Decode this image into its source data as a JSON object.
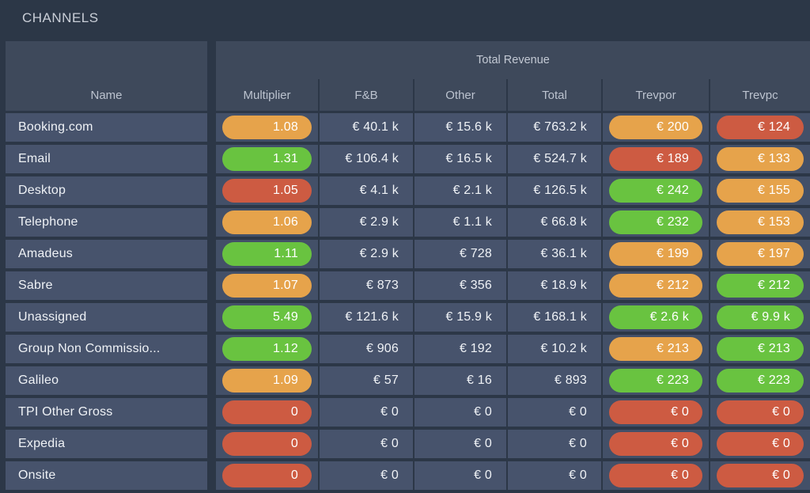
{
  "title": "CHANNELS",
  "table": {
    "group_header": "Total Revenue",
    "name_column_header": "Name",
    "columns": [
      "Multiplier",
      "F&B",
      "Other",
      "Total",
      "Trevpor",
      "Trevpc"
    ],
    "colors": {
      "orange": "#e6a34b",
      "green": "#69c340",
      "red": "#cd5b42",
      "panel_header_bg": "#3e495b",
      "cell_bg": "#47536c",
      "pill_cell_bg": "#435068",
      "page_bg": "#2c3747"
    },
    "rows": [
      {
        "name": "Booking.com",
        "multiplier": {
          "value": "1.08",
          "color": "orange"
        },
        "fb": "€ 40.1 k",
        "other": "€ 15.6 k",
        "total": "€ 763.2 k",
        "trevpor": {
          "value": "€ 200",
          "color": "orange"
        },
        "trevpc": {
          "value": "€ 124",
          "color": "red"
        }
      },
      {
        "name": "Email",
        "multiplier": {
          "value": "1.31",
          "color": "green"
        },
        "fb": "€ 106.4 k",
        "other": "€ 16.5 k",
        "total": "€ 524.7 k",
        "trevpor": {
          "value": "€ 189",
          "color": "red"
        },
        "trevpc": {
          "value": "€ 133",
          "color": "orange"
        }
      },
      {
        "name": "Desktop",
        "multiplier": {
          "value": "1.05",
          "color": "red"
        },
        "fb": "€ 4.1 k",
        "other": "€ 2.1 k",
        "total": "€ 126.5 k",
        "trevpor": {
          "value": "€ 242",
          "color": "green"
        },
        "trevpc": {
          "value": "€ 155",
          "color": "orange"
        }
      },
      {
        "name": "Telephone",
        "multiplier": {
          "value": "1.06",
          "color": "orange"
        },
        "fb": "€ 2.9 k",
        "other": "€ 1.1 k",
        "total": "€ 66.8 k",
        "trevpor": {
          "value": "€ 232",
          "color": "green"
        },
        "trevpc": {
          "value": "€ 153",
          "color": "orange"
        }
      },
      {
        "name": "Amadeus",
        "multiplier": {
          "value": "1.11",
          "color": "green"
        },
        "fb": "€ 2.9 k",
        "other": "€ 728",
        "total": "€ 36.1 k",
        "trevpor": {
          "value": "€ 199",
          "color": "orange"
        },
        "trevpc": {
          "value": "€ 197",
          "color": "orange"
        }
      },
      {
        "name": "Sabre",
        "multiplier": {
          "value": "1.07",
          "color": "orange"
        },
        "fb": "€ 873",
        "other": "€ 356",
        "total": "€ 18.9 k",
        "trevpor": {
          "value": "€ 212",
          "color": "orange"
        },
        "trevpc": {
          "value": "€ 212",
          "color": "green"
        }
      },
      {
        "name": "Unassigned",
        "multiplier": {
          "value": "5.49",
          "color": "green"
        },
        "fb": "€ 121.6 k",
        "other": "€ 15.9 k",
        "total": "€ 168.1 k",
        "trevpor": {
          "value": "€ 2.6 k",
          "color": "green"
        },
        "trevpc": {
          "value": "€ 9.9 k",
          "color": "green"
        }
      },
      {
        "name": "Group Non Commissio...",
        "multiplier": {
          "value": "1.12",
          "color": "green"
        },
        "fb": "€ 906",
        "other": "€ 192",
        "total": "€ 10.2 k",
        "trevpor": {
          "value": "€ 213",
          "color": "orange"
        },
        "trevpc": {
          "value": "€ 213",
          "color": "green"
        }
      },
      {
        "name": "Galileo",
        "multiplier": {
          "value": "1.09",
          "color": "orange"
        },
        "fb": "€ 57",
        "other": "€ 16",
        "total": "€ 893",
        "trevpor": {
          "value": "€ 223",
          "color": "green"
        },
        "trevpc": {
          "value": "€ 223",
          "color": "green"
        }
      },
      {
        "name": "TPI Other Gross",
        "multiplier": {
          "value": "0",
          "color": "red"
        },
        "fb": "€ 0",
        "other": "€ 0",
        "total": "€ 0",
        "trevpor": {
          "value": "€ 0",
          "color": "red"
        },
        "trevpc": {
          "value": "€ 0",
          "color": "red"
        }
      },
      {
        "name": "Expedia",
        "multiplier": {
          "value": "0",
          "color": "red"
        },
        "fb": "€ 0",
        "other": "€ 0",
        "total": "€ 0",
        "trevpor": {
          "value": "€ 0",
          "color": "red"
        },
        "trevpc": {
          "value": "€ 0",
          "color": "red"
        }
      },
      {
        "name": "Onsite",
        "multiplier": {
          "value": "0",
          "color": "red"
        },
        "fb": "€ 0",
        "other": "€ 0",
        "total": "€ 0",
        "trevpor": {
          "value": "€ 0",
          "color": "red"
        },
        "trevpc": {
          "value": "€ 0",
          "color": "red"
        }
      }
    ]
  }
}
